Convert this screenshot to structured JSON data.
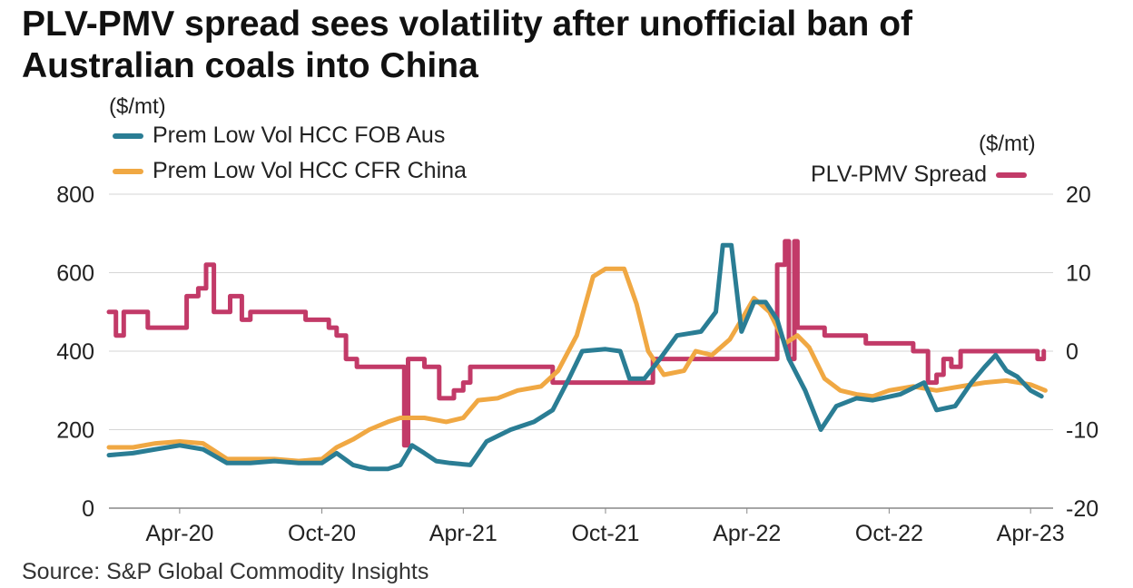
{
  "title_line1": "PLV-PMV spread sees volatility after unofficial ban of",
  "title_line2": "Australian coals into China",
  "source": "Source: S&P Global Commodity Insights",
  "chart_data": {
    "type": "line",
    "left_axis": {
      "unit": "($/mt)",
      "ylim": [
        0,
        800
      ],
      "ticks": [
        "0",
        "200",
        "400",
        "600",
        "800"
      ]
    },
    "right_axis": {
      "unit": "($/mt)",
      "ylim": [
        -20,
        20
      ],
      "ticks": [
        "-20",
        "-10",
        "0",
        "10",
        "20"
      ]
    },
    "x_ticks": [
      {
        "label": "Apr-20",
        "x": "2020-04-01"
      },
      {
        "label": "Oct-20",
        "x": "2020-10-01"
      },
      {
        "label": "Apr-21",
        "x": "2021-04-01"
      },
      {
        "label": "Oct-21",
        "x": "2021-10-01"
      },
      {
        "label": "Apr-22",
        "x": "2022-04-01"
      },
      {
        "label": "Oct-22",
        "x": "2022-10-01"
      },
      {
        "label": "Apr-23",
        "x": "2023-04-01"
      }
    ],
    "xlim": [
      "2020-01-01",
      "2023-04-30"
    ],
    "grid": true,
    "series": [
      {
        "name": "Prem Low Vol HCC FOB Aus",
        "color": "#2a7d94",
        "axis": "left",
        "points": [
          [
            "2020-01-01",
            135
          ],
          [
            "2020-02-01",
            140
          ],
          [
            "2020-03-01",
            150
          ],
          [
            "2020-04-01",
            160
          ],
          [
            "2020-05-01",
            150
          ],
          [
            "2020-06-01",
            115
          ],
          [
            "2020-07-01",
            115
          ],
          [
            "2020-08-01",
            120
          ],
          [
            "2020-09-01",
            115
          ],
          [
            "2020-10-01",
            115
          ],
          [
            "2020-10-20",
            140
          ],
          [
            "2020-11-10",
            110
          ],
          [
            "2020-12-01",
            100
          ],
          [
            "2020-12-25",
            100
          ],
          [
            "2021-01-10",
            110
          ],
          [
            "2021-01-25",
            160
          ],
          [
            "2021-02-10",
            140
          ],
          [
            "2021-02-25",
            120
          ],
          [
            "2021-03-15",
            115
          ],
          [
            "2021-04-10",
            110
          ],
          [
            "2021-05-01",
            170
          ],
          [
            "2021-06-01",
            200
          ],
          [
            "2021-07-01",
            220
          ],
          [
            "2021-07-25",
            250
          ],
          [
            "2021-08-15",
            330
          ],
          [
            "2021-09-01",
            400
          ],
          [
            "2021-10-01",
            405
          ],
          [
            "2021-10-20",
            400
          ],
          [
            "2021-11-01",
            330
          ],
          [
            "2021-11-20",
            330
          ],
          [
            "2021-12-10",
            380
          ],
          [
            "2022-01-01",
            440
          ],
          [
            "2022-02-01",
            450
          ],
          [
            "2022-02-20",
            500
          ],
          [
            "2022-03-01",
            670
          ],
          [
            "2022-03-12",
            670
          ],
          [
            "2022-03-25",
            450
          ],
          [
            "2022-04-10",
            525
          ],
          [
            "2022-04-25",
            525
          ],
          [
            "2022-05-10",
            480
          ],
          [
            "2022-05-25",
            380
          ],
          [
            "2022-06-15",
            300
          ],
          [
            "2022-07-05",
            200
          ],
          [
            "2022-07-25",
            260
          ],
          [
            "2022-08-20",
            280
          ],
          [
            "2022-09-10",
            275
          ],
          [
            "2022-10-15",
            290
          ],
          [
            "2022-11-15",
            320
          ],
          [
            "2022-12-01",
            250
          ],
          [
            "2022-12-25",
            260
          ],
          [
            "2023-01-15",
            320
          ],
          [
            "2023-02-01",
            360
          ],
          [
            "2023-02-15",
            390
          ],
          [
            "2023-03-01",
            350
          ],
          [
            "2023-03-15",
            335
          ],
          [
            "2023-04-01",
            300
          ],
          [
            "2023-04-15",
            285
          ]
        ]
      },
      {
        "name": "Prem Low Vol HCC CFR China",
        "color": "#f0a843",
        "axis": "left",
        "points": [
          [
            "2020-01-01",
            155
          ],
          [
            "2020-02-01",
            155
          ],
          [
            "2020-03-01",
            165
          ],
          [
            "2020-04-01",
            170
          ],
          [
            "2020-05-01",
            165
          ],
          [
            "2020-06-01",
            125
          ],
          [
            "2020-07-01",
            125
          ],
          [
            "2020-08-01",
            125
          ],
          [
            "2020-09-01",
            120
          ],
          [
            "2020-10-01",
            125
          ],
          [
            "2020-10-20",
            155
          ],
          [
            "2020-11-10",
            175
          ],
          [
            "2020-12-01",
            200
          ],
          [
            "2020-12-25",
            220
          ],
          [
            "2021-01-10",
            230
          ],
          [
            "2021-02-10",
            230
          ],
          [
            "2021-03-10",
            220
          ],
          [
            "2021-04-01",
            230
          ],
          [
            "2021-04-20",
            275
          ],
          [
            "2021-05-15",
            280
          ],
          [
            "2021-06-10",
            300
          ],
          [
            "2021-07-10",
            310
          ],
          [
            "2021-08-01",
            350
          ],
          [
            "2021-08-25",
            440
          ],
          [
            "2021-09-15",
            590
          ],
          [
            "2021-10-01",
            610
          ],
          [
            "2021-10-25",
            610
          ],
          [
            "2021-11-10",
            520
          ],
          [
            "2021-11-25",
            400
          ],
          [
            "2021-12-15",
            340
          ],
          [
            "2022-01-10",
            350
          ],
          [
            "2022-01-25",
            400
          ],
          [
            "2022-02-15",
            390
          ],
          [
            "2022-03-10",
            430
          ],
          [
            "2022-03-25",
            480
          ],
          [
            "2022-04-10",
            535
          ],
          [
            "2022-04-30",
            500
          ],
          [
            "2022-05-20",
            420
          ],
          [
            "2022-06-05",
            440
          ],
          [
            "2022-06-20",
            410
          ],
          [
            "2022-07-10",
            330
          ],
          [
            "2022-07-30",
            300
          ],
          [
            "2022-08-20",
            290
          ],
          [
            "2022-09-10",
            285
          ],
          [
            "2022-10-01",
            300
          ],
          [
            "2022-11-01",
            310
          ],
          [
            "2022-12-01",
            300
          ],
          [
            "2023-01-01",
            310
          ],
          [
            "2023-02-01",
            320
          ],
          [
            "2023-03-01",
            325
          ],
          [
            "2023-04-01",
            315
          ],
          [
            "2023-04-20",
            300
          ]
        ]
      },
      {
        "name": "PLV-PMV Spread",
        "color": "#c23a68",
        "axis": "right",
        "points": [
          [
            "2020-01-01",
            5
          ],
          [
            "2020-01-10",
            2
          ],
          [
            "2020-01-20",
            5
          ],
          [
            "2020-02-01",
            5
          ],
          [
            "2020-02-20",
            3
          ],
          [
            "2020-03-10",
            3
          ],
          [
            "2020-04-01",
            3
          ],
          [
            "2020-04-10",
            7
          ],
          [
            "2020-04-25",
            8
          ],
          [
            "2020-05-05",
            11
          ],
          [
            "2020-05-15",
            5
          ],
          [
            "2020-06-05",
            7
          ],
          [
            "2020-06-20",
            4
          ],
          [
            "2020-07-01",
            5
          ],
          [
            "2020-08-01",
            5
          ],
          [
            "2020-09-01",
            5
          ],
          [
            "2020-09-10",
            4
          ],
          [
            "2020-10-01",
            4
          ],
          [
            "2020-10-10",
            3
          ],
          [
            "2020-10-20",
            2
          ],
          [
            "2020-11-01",
            -1
          ],
          [
            "2020-11-15",
            -2
          ],
          [
            "2020-12-10",
            -2
          ],
          [
            "2021-01-01",
            -2
          ],
          [
            "2021-01-15",
            -12
          ],
          [
            "2021-01-20",
            -1
          ],
          [
            "2021-02-10",
            -2
          ],
          [
            "2021-03-01",
            -6
          ],
          [
            "2021-03-20",
            -5
          ],
          [
            "2021-04-01",
            -4
          ],
          [
            "2021-04-10",
            -2
          ],
          [
            "2021-05-01",
            -2
          ],
          [
            "2021-06-01",
            -2
          ],
          [
            "2021-06-20",
            -2
          ],
          [
            "2021-07-01",
            -2
          ],
          [
            "2021-07-25",
            -4
          ],
          [
            "2021-08-15",
            -4
          ],
          [
            "2021-10-01",
            -4
          ],
          [
            "2021-11-01",
            -4
          ],
          [
            "2021-12-01",
            -1
          ],
          [
            "2022-01-01",
            -1
          ],
          [
            "2022-02-01",
            -1
          ],
          [
            "2022-03-01",
            -1
          ],
          [
            "2022-04-01",
            -1
          ],
          [
            "2022-05-01",
            -1
          ],
          [
            "2022-05-10",
            11
          ],
          [
            "2022-05-20",
            14
          ],
          [
            "2022-05-25",
            -1
          ],
          [
            "2022-06-01",
            14
          ],
          [
            "2022-06-05",
            3
          ],
          [
            "2022-06-20",
            3
          ],
          [
            "2022-07-10",
            2
          ],
          [
            "2022-08-01",
            2
          ],
          [
            "2022-09-01",
            1
          ],
          [
            "2022-10-01",
            1
          ],
          [
            "2022-11-01",
            0
          ],
          [
            "2022-11-20",
            -4
          ],
          [
            "2022-12-01",
            -3
          ],
          [
            "2022-12-10",
            -1
          ],
          [
            "2022-12-20",
            -2
          ],
          [
            "2023-01-01",
            0
          ],
          [
            "2023-02-01",
            0
          ],
          [
            "2023-03-01",
            0
          ],
          [
            "2023-04-01",
            0
          ],
          [
            "2023-04-10",
            -1
          ],
          [
            "2023-04-18",
            0
          ]
        ]
      }
    ]
  }
}
